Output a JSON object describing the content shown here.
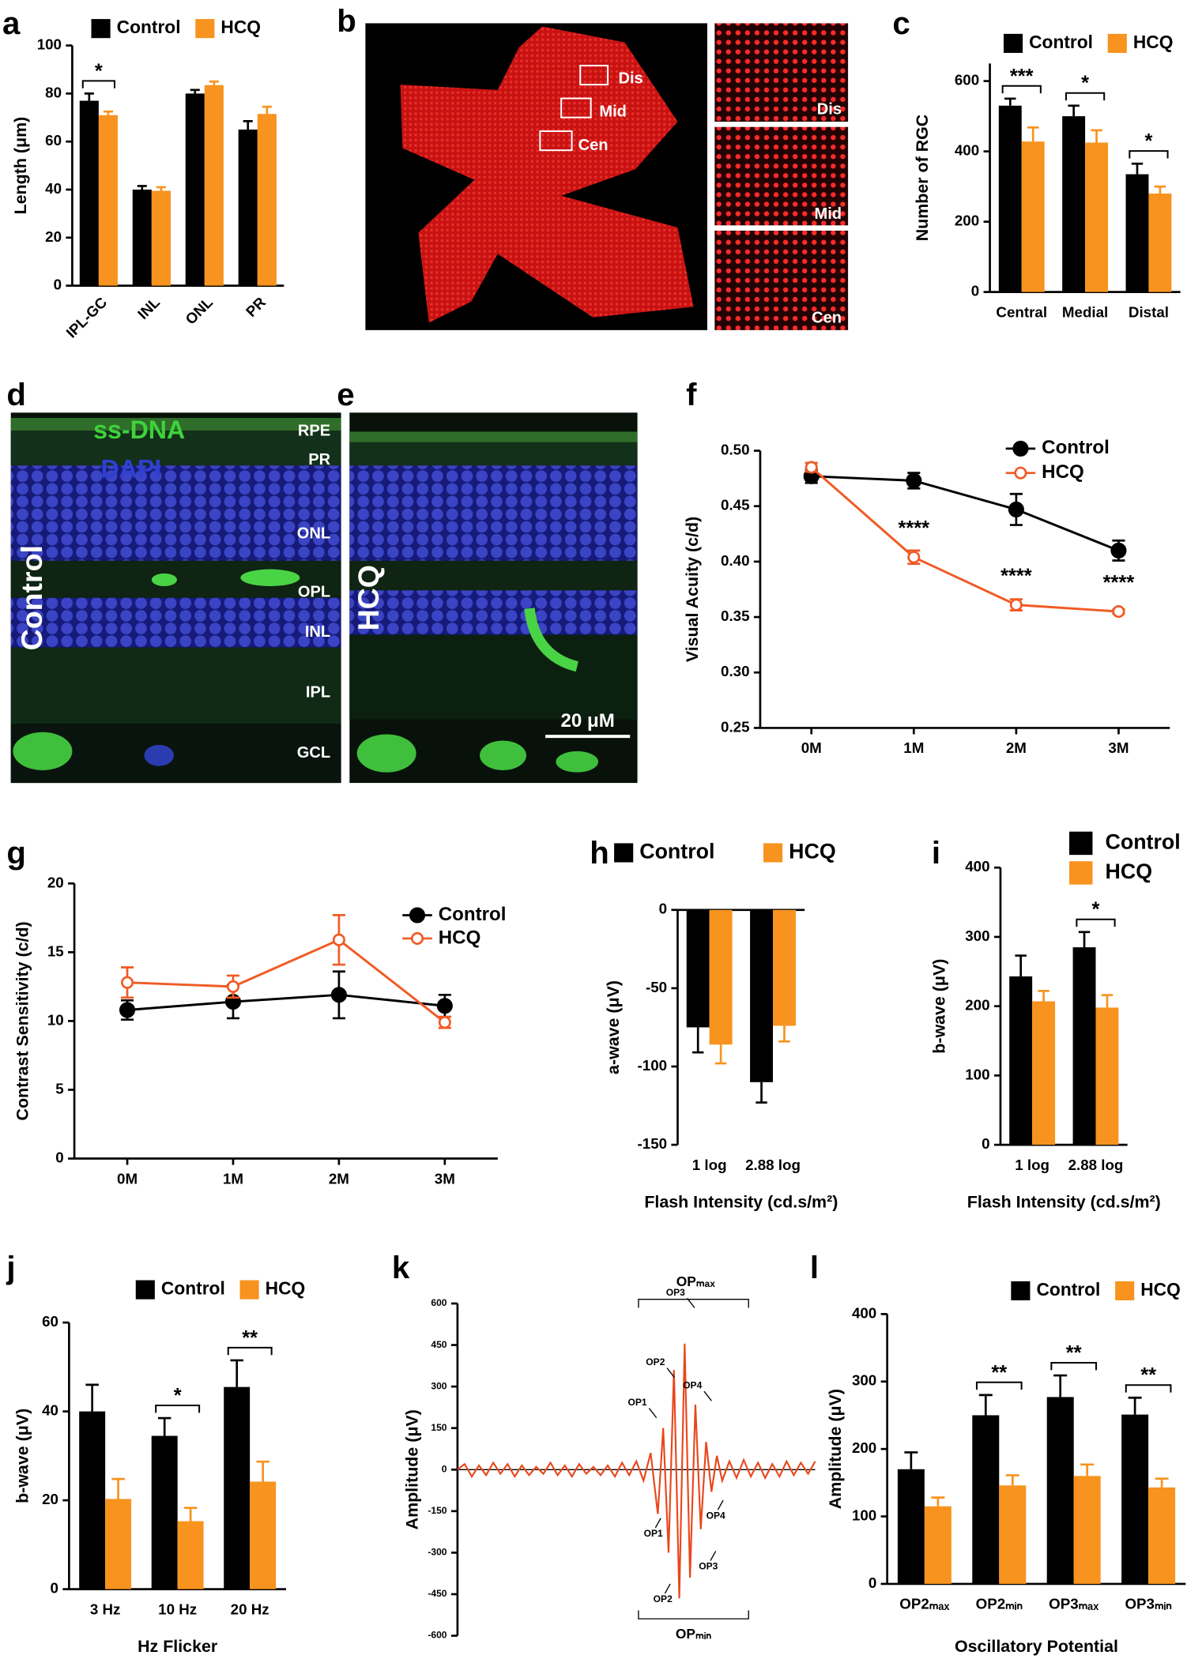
{
  "chart_data": [
    {
      "panel": "a",
      "type": "bar",
      "ylabel": "Length (μm)",
      "categories": [
        "IPL-GC",
        "INL",
        "ONL",
        "PR"
      ],
      "series": [
        {
          "name": "Control",
          "color": "#000000",
          "values": [
            77,
            40,
            80,
            65
          ],
          "errors": [
            3,
            1.5,
            1.5,
            3.5
          ]
        },
        {
          "name": "HCQ",
          "color": "#f7931e",
          "values": [
            71,
            39.5,
            83.5,
            71.5
          ],
          "errors": [
            1.5,
            1.5,
            1.5,
            3
          ]
        }
      ],
      "ylim": [
        0,
        100
      ],
      "yticks": [
        0,
        20,
        40,
        60,
        80,
        100
      ],
      "legend": "top",
      "significance": [
        "*",
        null,
        null,
        null
      ]
    },
    {
      "panel": "c",
      "type": "bar",
      "ylabel": "Number of RGC",
      "categories": [
        "Central",
        "Medial",
        "Distal"
      ],
      "series": [
        {
          "name": "Control",
          "color": "#000000",
          "values": [
            530,
            500,
            335
          ],
          "errors": [
            20,
            30,
            30
          ]
        },
        {
          "name": "HCQ",
          "color": "#f7931e",
          "values": [
            428,
            425,
            280
          ],
          "errors": [
            40,
            35,
            20
          ]
        }
      ],
      "ylim": [
        0,
        650
      ],
      "yticks": [
        0,
        200,
        400,
        600
      ],
      "legend": "top",
      "significance": [
        "***",
        "*",
        "*"
      ]
    },
    {
      "panel": "f",
      "type": "line",
      "ylabel": "Visual Acuity (c/d)",
      "categories": [
        "0M",
        "1M",
        "2M",
        "3M"
      ],
      "series": [
        {
          "name": "Control",
          "color": "#000000",
          "marker": "filled",
          "values": [
            0.477,
            0.473,
            0.447,
            0.41
          ],
          "errors": [
            0.006,
            0.007,
            0.014,
            0.009
          ]
        },
        {
          "name": "HCQ",
          "color": "#f15a24",
          "marker": "open",
          "values": [
            0.485,
            0.404,
            0.361,
            0.355
          ],
          "errors": [
            0.004,
            0.006,
            0.005,
            0.002
          ]
        }
      ],
      "ylim": [
        0.25,
        0.5
      ],
      "yticks": [
        0.25,
        {
          "value": 0.3,
          "label": "0.30"
        },
        0.35,
        {
          "value": 0.4,
          "label": "0.40"
        },
        0.45,
        {
          "value": 0.5,
          "label": "0.50"
        }
      ],
      "legend": "upper right",
      "significance": [
        null,
        "****",
        "****",
        "****"
      ]
    },
    {
      "panel": "g",
      "type": "line",
      "ylabel": "Contrast Sensitivity (c/d)",
      "categories": [
        "0M",
        "1M",
        "2M",
        "3M"
      ],
      "series": [
        {
          "name": "Control",
          "color": "#000000",
          "marker": "filled",
          "values": [
            10.8,
            11.4,
            11.9,
            11.1
          ],
          "errors": [
            0.7,
            1.2,
            1.7,
            0.8
          ]
        },
        {
          "name": "HCQ",
          "color": "#f15a24",
          "marker": "open",
          "values": [
            12.8,
            12.5,
            15.9,
            9.9
          ],
          "errors": [
            1.1,
            0.8,
            1.8,
            0.4
          ]
        }
      ],
      "ylim": [
        0,
        20
      ],
      "yticks": [
        0,
        5,
        10,
        15,
        20
      ],
      "legend": "upper right"
    },
    {
      "panel": "h",
      "type": "bar",
      "ylabel": "a-wave (μV)",
      "xlabel": "Flash Intensity (cd.s/m²)",
      "categories": [
        "1 log",
        "2.88 log"
      ],
      "series": [
        {
          "name": "Control",
          "color": "#000000",
          "values": [
            -75,
            -110
          ],
          "errors": [
            16,
            13
          ]
        },
        {
          "name": "HCQ",
          "color": "#f7931e",
          "values": [
            -86,
            -74
          ],
          "errors": [
            12,
            10
          ]
        }
      ],
      "ylim": [
        -150,
        0
      ],
      "yticks": [
        0,
        -50,
        -100,
        -150
      ],
      "legend": "top"
    },
    {
      "panel": "i",
      "type": "bar",
      "ylabel": "b-wave (μV)",
      "xlabel": "Flash Intensity (cd.s/m²)",
      "categories": [
        "1 log",
        "2.88 log"
      ],
      "series": [
        {
          "name": "Control",
          "color": "#000000",
          "values": [
            243,
            285
          ],
          "errors": [
            30,
            22
          ]
        },
        {
          "name": "HCQ",
          "color": "#f7931e",
          "values": [
            207,
            198
          ],
          "errors": [
            15,
            18
          ]
        }
      ],
      "ylim": [
        0,
        400
      ],
      "yticks": [
        0,
        100,
        200,
        300,
        400
      ],
      "legend": "upper right",
      "significance": [
        null,
        "*"
      ]
    },
    {
      "panel": "j",
      "type": "bar",
      "ylabel": "b-wave (μV)",
      "xlabel": "Hz Flicker",
      "categories": [
        "3 Hz",
        "10 Hz",
        "20 Hz"
      ],
      "series": [
        {
          "name": "Control",
          "color": "#000000",
          "values": [
            40,
            34.5,
            45.5
          ],
          "errors": [
            6,
            4,
            6
          ]
        },
        {
          "name": "HCQ",
          "color": "#f7931e",
          "values": [
            20.3,
            15.3,
            24.2
          ],
          "errors": [
            4.5,
            3,
            4.5
          ]
        }
      ],
      "ylim": [
        0,
        60
      ],
      "yticks": [
        0,
        20,
        40,
        60
      ],
      "legend": "top",
      "significance": [
        null,
        "*",
        "**"
      ]
    },
    {
      "panel": "k",
      "type": "line",
      "ylabel": "Amplitude (μV)",
      "x": [
        0,
        2,
        4,
        6,
        8,
        10,
        12,
        14,
        16,
        18,
        20,
        22,
        24,
        26,
        28,
        30,
        32,
        34,
        36,
        38,
        40,
        42,
        44,
        46,
        48,
        50,
        52,
        54,
        56,
        57.5,
        59,
        60.5,
        62,
        63.5,
        65,
        66.5,
        68,
        69.5,
        71,
        72.5,
        74,
        76,
        78,
        80,
        82,
        84,
        86,
        88,
        90,
        92,
        94,
        96,
        98,
        100
      ],
      "series": [
        {
          "color": "#e8471c",
          "values": [
            0,
            20,
            -25,
            15,
            -20,
            25,
            -15,
            20,
            -25,
            15,
            -20,
            10,
            -15,
            25,
            -20,
            15,
            -25,
            20,
            -15,
            10,
            -20,
            15,
            -25,
            25,
            -20,
            30,
            -40,
            60,
            -160,
            150,
            -300,
            360,
            -465,
            455,
            -390,
            235,
            -215,
            100,
            -80,
            50,
            -40,
            30,
            -30,
            35,
            -25,
            25,
            -30,
            20,
            -25,
            30,
            -20,
            25,
            -15,
            30
          ]
        }
      ],
      "xlim": [
        0,
        100
      ],
      "ylim": [
        -600,
        600
      ],
      "yticks": [
        600,
        450,
        300,
        150,
        0,
        -150,
        -300,
        -450,
        -600
      ],
      "peak_labels": [
        "OP1",
        "OP2",
        "OP3",
        "OP4"
      ],
      "trough_labels": [
        "OP1",
        "OP2",
        "OP3",
        "OP4"
      ],
      "bracket_labels": [
        "OPₘₐₓ",
        "OPₘᵢₙ"
      ]
    },
    {
      "panel": "l",
      "type": "bar",
      "ylabel": "Amplitude (μV)",
      "xlabel": "Oscillatory Potential",
      "categories": [
        "OP2ₘₐₓ",
        "OP2ₘᵢₙ",
        "OP3ₘₐₓ",
        "OP3ₘᵢₙ"
      ],
      "series": [
        {
          "name": "Control",
          "color": "#000000",
          "values": [
            170,
            250,
            277,
            251
          ],
          "errors": [
            25,
            30,
            32,
            25
          ]
        },
        {
          "name": "HCQ",
          "color": "#f7931e",
          "values": [
            115,
            146,
            160,
            143
          ],
          "errors": [
            13,
            15,
            17,
            13
          ]
        }
      ],
      "ylim": [
        0,
        400
      ],
      "yticks": [
        0,
        100,
        200,
        300,
        400
      ],
      "legend": "top",
      "significance": [
        null,
        "**",
        "**",
        "**"
      ]
    }
  ],
  "figure_panels": [
    {
      "panel": "b",
      "regions": [
        "Dis",
        "Mid",
        "Cen"
      ],
      "insets": [
        "Dis",
        "Mid",
        "Cen"
      ]
    },
    {
      "panel": "d",
      "stains": [
        "ss-DNA",
        "DAPI"
      ],
      "condition": "Control",
      "layers": [
        "RPE",
        "PR",
        "ONL",
        "OPL",
        "INL",
        "IPL",
        "GCL"
      ]
    },
    {
      "panel": "e",
      "condition": "HCQ",
      "scale_bar": "20 μM"
    }
  ]
}
